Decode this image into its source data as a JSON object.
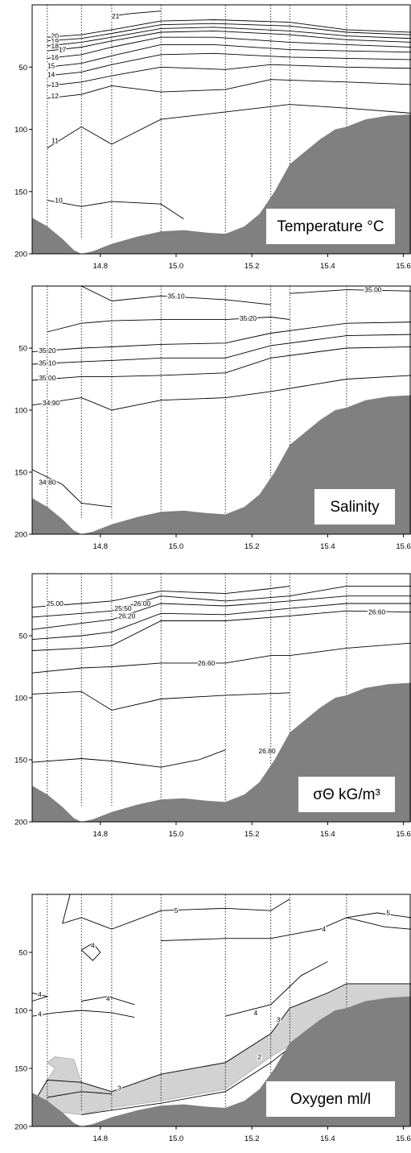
{
  "colors": {
    "seabed": "#808080",
    "contour": "#000000",
    "station": "#000000",
    "low_oxygen_fill": "#d2d2d2",
    "label_box": "#ffffff"
  },
  "chart_data": [
    {
      "type": "contour",
      "panel_label": "Temperature °C",
      "x_ticks": [
        "14.8",
        "15.0",
        "15.2",
        "15.4",
        "15.6"
      ],
      "y_ticks": [
        "50",
        "100",
        "150",
        "200"
      ],
      "xlim": [
        14.62,
        15.62
      ],
      "ylim": [
        200,
        0
      ],
      "stations_x": [
        14.66,
        14.75,
        14.83,
        14.96,
        15.13,
        15.25,
        15.3,
        15.45
      ],
      "contours": [
        {
          "value": "21",
          "x": [
            14.96,
            14.88,
            14.83
          ],
          "y": [
            5,
            7,
            9
          ],
          "label_at": [
            14.84,
            9
          ]
        },
        {
          "value": "20",
          "x": [
            14.66,
            14.75,
            14.83,
            14.96,
            15.1,
            15.3,
            15.45,
            15.62
          ],
          "y": [
            26,
            24,
            20,
            13,
            12,
            14,
            20,
            22
          ],
          "label_at": [
            14.68,
            25
          ]
        },
        {
          "value": "19",
          "x": [
            14.66,
            14.75,
            14.83,
            14.96,
            15.1,
            15.3,
            15.45,
            15.62
          ],
          "y": [
            29,
            27,
            23,
            16,
            15,
            17,
            22,
            24
          ],
          "label_at": [
            14.68,
            29
          ]
        },
        {
          "value": "18",
          "x": [
            14.66,
            14.75,
            14.83,
            14.96,
            15.1,
            15.3,
            15.45,
            15.62
          ],
          "y": [
            33,
            30,
            26,
            19,
            18,
            21,
            25,
            27
          ],
          "label_at": [
            14.68,
            33
          ]
        },
        {
          "value": "17",
          "x": [
            14.66,
            14.75,
            14.83,
            14.96,
            15.1,
            15.3,
            15.45,
            15.62
          ],
          "y": [
            37,
            34,
            29,
            22,
            21,
            24,
            28,
            30
          ],
          "label_at": [
            14.7,
            36
          ]
        },
        {
          "value": "16",
          "x": [
            14.66,
            14.75,
            14.83,
            14.96,
            15.1,
            15.3,
            15.45,
            15.62
          ],
          "y": [
            43,
            40,
            34,
            26,
            26,
            30,
            32,
            34
          ],
          "label_at": [
            14.68,
            42
          ]
        },
        {
          "value": "15",
          "x": [
            14.66,
            14.75,
            14.83,
            14.96,
            15.1,
            15.3,
            15.45,
            15.62
          ],
          "y": [
            50,
            47,
            41,
            32,
            32,
            36,
            37,
            38
          ],
          "label_at": [
            14.67,
            49
          ]
        },
        {
          "value": "14",
          "x": [
            14.66,
            14.75,
            14.83,
            14.96,
            15.1,
            15.3,
            15.45,
            15.62
          ],
          "y": [
            57,
            54,
            48,
            40,
            39,
            42,
            43,
            44
          ],
          "label_at": [
            14.67,
            56
          ]
        },
        {
          "value": "13",
          "x": [
            14.66,
            14.75,
            14.83,
            14.96,
            15.13,
            15.25,
            15.45,
            15.62
          ],
          "y": [
            65,
            62,
            57,
            50,
            52,
            48,
            50,
            51
          ],
          "label_at": [
            14.68,
            64
          ]
        },
        {
          "value": "12",
          "x": [
            14.66,
            14.75,
            14.83,
            14.96,
            15.13,
            15.25,
            15.45,
            15.62
          ],
          "y": [
            75,
            72,
            65,
            70,
            68,
            60,
            62,
            64
          ],
          "label_at": [
            14.68,
            73
          ]
        },
        {
          "value": "11",
          "x": [
            14.66,
            14.75,
            14.83,
            14.96,
            15.13,
            15.3,
            15.45,
            15.62
          ],
          "y": [
            115,
            98,
            112,
            92,
            86,
            80,
            83,
            87
          ],
          "label_at": [
            14.68,
            109
          ]
        },
        {
          "value": "10",
          "x": [
            14.66,
            14.75,
            14.83,
            14.96,
            15.02
          ],
          "y": [
            157,
            162,
            158,
            160,
            172
          ],
          "label_at": [
            14.69,
            157
          ]
        }
      ]
    },
    {
      "type": "contour",
      "panel_label": "Salinity",
      "x_ticks": [
        "14.8",
        "15.0",
        "15.2",
        "15.4",
        "15.6"
      ],
      "y_ticks": [
        "50",
        "100",
        "150",
        "200"
      ],
      "xlim": [
        14.62,
        15.62
      ],
      "ylim": [
        200,
        0
      ],
      "stations_x": [
        14.66,
        14.75,
        14.83,
        14.96,
        15.13,
        15.25,
        15.3,
        15.45
      ],
      "contours": [
        {
          "value": "35.10",
          "x": [
            14.75,
            14.83,
            14.96,
            15.13,
            15.25
          ],
          "y": [
            0,
            12,
            8,
            11,
            15
          ],
          "label_at": [
            15.0,
            8
          ]
        },
        {
          "value": "35.00",
          "x": [
            15.3,
            15.45,
            15.62
          ],
          "y": [
            6,
            3,
            4
          ],
          "label_at": [
            15.52,
            3
          ]
        },
        {
          "value": "35.20",
          "x": [
            14.66,
            14.75,
            14.83,
            14.96,
            15.13,
            15.25,
            15.3
          ],
          "y": [
            37,
            30,
            28,
            27,
            27,
            25,
            27
          ],
          "label_at": [
            15.19,
            26
          ]
        },
        {
          "value": "35.20",
          "x": [
            14.62,
            14.75,
            14.83,
            14.96,
            15.13,
            15.25,
            15.45,
            15.62
          ],
          "y": [
            53,
            50,
            49,
            47,
            46,
            38,
            30,
            29
          ],
          "label_at": [
            14.66,
            52
          ]
        },
        {
          "value": "35.10",
          "x": [
            14.62,
            14.75,
            14.83,
            14.96,
            15.13,
            15.25,
            15.45,
            15.62
          ],
          "y": [
            63,
            61,
            60,
            58,
            58,
            48,
            40,
            39
          ],
          "label_at": [
            14.66,
            62
          ]
        },
        {
          "value": "35.00",
          "x": [
            14.62,
            14.75,
            14.83,
            14.96,
            15.13,
            15.25,
            15.45,
            15.62
          ],
          "y": [
            76,
            73,
            73,
            72,
            70,
            58,
            50,
            49
          ],
          "label_at": [
            14.66,
            74
          ]
        },
        {
          "value": "34.90",
          "x": [
            14.62,
            14.75,
            14.83,
            14.96,
            15.13,
            15.25,
            15.45,
            15.62
          ],
          "y": [
            96,
            90,
            100,
            92,
            90,
            85,
            75,
            72
          ],
          "label_at": [
            14.67,
            94
          ]
        },
        {
          "value": "34.80",
          "x": [
            14.62,
            14.7,
            14.75,
            14.83
          ],
          "y": [
            148,
            160,
            175,
            178
          ],
          "label_at": [
            14.66,
            158
          ]
        }
      ]
    },
    {
      "type": "contour",
      "panel_label": "σΘ kG/m³",
      "x_ticks": [
        "14.8",
        "15.0",
        "15.2",
        "15.4",
        "15.6"
      ],
      "y_ticks": [
        "50",
        "100",
        "150",
        "200"
      ],
      "xlim": [
        14.62,
        15.62
      ],
      "ylim": [
        200,
        0
      ],
      "stations_x": [
        14.66,
        14.75,
        14.83,
        14.96,
        15.13,
        15.25,
        15.3,
        15.45
      ],
      "contours": [
        {
          "value": "25.00",
          "x": [
            14.62,
            14.75,
            14.83,
            14.96,
            15.13,
            15.25,
            15.3
          ],
          "y": [
            27,
            24,
            22,
            14,
            16,
            12,
            10
          ],
          "label_at": [
            14.68,
            24
          ]
        },
        {
          "value": "25.50",
          "x": [
            14.62,
            14.75,
            14.83,
            14.96,
            15.13,
            15.3,
            15.45,
            15.62
          ],
          "y": [
            35,
            32,
            30,
            18,
            22,
            18,
            10,
            10
          ],
          "label_at": [
            14.86,
            28
          ]
        },
        {
          "value": "26.00",
          "x": [
            14.62,
            14.75,
            14.83,
            14.96,
            15.13,
            15.3,
            15.45,
            15.62
          ],
          "y": [
            45,
            40,
            37,
            24,
            26,
            22,
            18,
            18
          ],
          "label_at": [
            14.91,
            24
          ]
        },
        {
          "value": "26.20",
          "x": [
            14.62,
            14.75,
            14.83,
            14.96,
            15.13,
            15.3,
            15.45,
            15.62
          ],
          "y": [
            53,
            50,
            47,
            32,
            33,
            28,
            24,
            24
          ],
          "label_at": [
            14.87,
            34
          ]
        },
        {
          "value": "26.60",
          "x": [
            14.62,
            14.75,
            14.83,
            14.96,
            15.13,
            15.3,
            15.45,
            15.62
          ],
          "y": [
            62,
            60,
            58,
            38,
            38,
            34,
            30,
            31
          ],
          "label_at": [
            15.53,
            31
          ]
        },
        {
          "value": "26.60",
          "x": [
            14.62,
            14.75,
            14.83,
            14.96,
            15.13,
            15.25,
            15.3,
            15.45,
            15.62
          ],
          "y": [
            80,
            76,
            75,
            72,
            72,
            66,
            66,
            60,
            56
          ],
          "label_at": [
            15.08,
            72
          ]
        },
        {
          "value": "",
          "x": [
            14.62,
            14.75,
            14.83,
            14.96,
            15.13,
            15.3
          ],
          "y": [
            97,
            95,
            110,
            101,
            98,
            96
          ],
          "label_at": null
        },
        {
          "value": "26.80",
          "x": [
            14.62,
            14.75,
            14.83,
            14.96,
            15.06,
            15.13
          ],
          "y": [
            152,
            149,
            151,
            156,
            150,
            142
          ],
          "label_at": [
            15.24,
            143
          ]
        }
      ]
    },
    {
      "type": "contour",
      "panel_label": "Oxygen ml/l",
      "x_ticks": [
        "14.8",
        "15.0",
        "15.2",
        "15.4",
        "15.6"
      ],
      "y_ticks": [
        "50",
        "100",
        "150",
        "200"
      ],
      "xlim": [
        14.62,
        15.62
      ],
      "ylim": [
        200,
        0
      ],
      "stations_x": [
        14.66,
        14.75,
        14.83,
        14.96,
        15.13,
        15.25,
        15.3,
        15.45
      ],
      "shaded_region_label": "",
      "contours": [
        {
          "value": "5",
          "x": [
            14.72,
            14.7,
            14.75,
            14.83,
            14.96,
            15.13,
            15.25,
            15.3
          ],
          "y": [
            0,
            25,
            20,
            30,
            14,
            12,
            14,
            4
          ],
          "label_at": [
            15.0,
            14
          ]
        },
        {
          "value": "5",
          "x": [
            15.45,
            15.53,
            15.62
          ],
          "y": [
            20,
            16,
            20
          ],
          "label_at": [
            15.56,
            16
          ]
        },
        {
          "value": "4",
          "x": [
            14.96,
            15.13,
            15.25,
            15.38,
            15.45,
            15.55,
            15.62
          ],
          "y": [
            40,
            38,
            38,
            30,
            20,
            28,
            30
          ],
          "label_at": [
            15.39,
            30
          ]
        },
        {
          "value": "4",
          "x": [
            15.13,
            15.25,
            15.33,
            15.4
          ],
          "y": [
            105,
            95,
            70,
            58
          ],
          "label_at": [
            15.21,
            102
          ]
        },
        {
          "value": "4",
          "x": [
            14.62,
            14.68,
            14.75,
            14.83,
            14.89
          ],
          "y": [
            105,
            102,
            100,
            102,
            106
          ],
          "label_at": [
            14.64,
            103
          ]
        },
        {
          "value": "3",
          "x": [
            14.62,
            14.66,
            14.75,
            14.83,
            14.96,
            15.13,
            15.25,
            15.3,
            15.4,
            15.45,
            15.62
          ],
          "y": [
            182,
            160,
            162,
            170,
            155,
            145,
            120,
            98,
            85,
            77,
            77
          ],
          "label_at": [
            15.27,
            108
          ]
        },
        {
          "value": "2",
          "x": [
            14.75,
            14.83,
            14.96,
            15.13,
            15.25,
            15.3,
            15.45,
            15.62
          ],
          "y": [
            190,
            186,
            180,
            170,
            145,
            132,
            112,
            106
          ],
          "label_at": [
            15.22,
            140
          ]
        },
        {
          "value": "4",
          "x": [
            14.75,
            14.78,
            14.8,
            14.78,
            14.75
          ],
          "y": [
            48,
            42,
            50,
            57,
            48
          ],
          "label_at": [
            14.78,
            44
          ]
        },
        {
          "value": "4",
          "x": [
            14.62,
            14.66,
            14.62
          ],
          "y": [
            85,
            88,
            92
          ],
          "label_at": [
            14.64,
            86
          ]
        },
        {
          "value": "4",
          "x": [
            14.75,
            14.82,
            14.89
          ],
          "y": [
            92,
            88,
            95
          ],
          "label_at": [
            14.82,
            90
          ]
        },
        {
          "value": "3",
          "x": [
            14.66,
            14.75,
            14.83
          ],
          "y": [
            175,
            170,
            172
          ],
          "label_at": [
            14.85,
            167
          ]
        }
      ]
    }
  ]
}
